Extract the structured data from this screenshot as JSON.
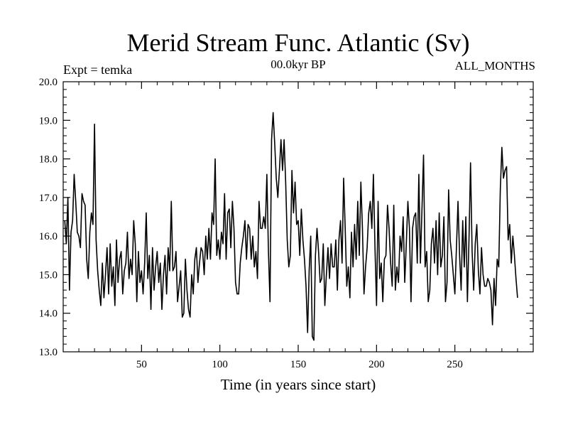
{
  "chart_data": {
    "type": "line",
    "title": "Merid Stream Func. Atlantic (Sv)",
    "subtitle_left": "Expt = temka",
    "subtitle_center": "00.0kyr BP",
    "subtitle_right": "ALL_MONTHS",
    "xlabel": "Time (in years since start)",
    "ylabel": "",
    "xlim": [
      0,
      300
    ],
    "ylim": [
      13.0,
      20.0
    ],
    "x_ticks": [
      50,
      100,
      150,
      200,
      250
    ],
    "x_tick_labels": [
      "50",
      "100",
      "150",
      "200",
      "250"
    ],
    "y_ticks": [
      13,
      14,
      15,
      16,
      17,
      18,
      19,
      20
    ],
    "y_tick_labels": [
      "13.0",
      "14.0",
      "15.0",
      "16.0",
      "17.0",
      "18.0",
      "19.0",
      "20.0"
    ],
    "x_minor_step": 10,
    "y_minor_step": 0.2,
    "line_color": "#000000",
    "series": [
      {
        "name": "Merid Stream Func. Atlantic",
        "x_start": 1,
        "x_step": 1,
        "values": [
          16.4,
          15.8,
          17.0,
          14.6,
          16.1,
          16.4,
          17.6,
          16.9,
          16.1,
          16.0,
          15.7,
          17.1,
          16.9,
          16.8,
          15.4,
          14.9,
          16.1,
          16.6,
          16.3,
          18.9,
          15.9,
          15.1,
          14.6,
          14.2,
          15.3,
          14.4,
          15.0,
          15.7,
          14.5,
          15.8,
          14.7,
          15.2,
          14.2,
          15.9,
          14.8,
          15.4,
          15.6,
          14.5,
          15.1,
          15.3,
          16.1,
          14.9,
          15.4,
          15.0,
          16.4,
          15.8,
          14.3,
          15.6,
          14.8,
          15.1,
          14.5,
          15.3,
          16.6,
          14.9,
          15.5,
          14.1,
          15.7,
          14.6,
          15.2,
          15.6,
          14.8,
          15.3,
          14.1,
          15.0,
          15.5,
          14.5,
          15.7,
          15.1,
          16.9,
          15.1,
          15.2,
          15.6,
          14.3,
          14.7,
          15.1,
          13.9,
          14.0,
          15.4,
          14.6,
          14.1,
          13.9,
          15.0,
          14.5,
          15.4,
          15.7,
          14.8,
          15.3,
          15.7,
          15.6,
          15.0,
          16.0,
          15.4,
          16.2,
          15.4,
          16.6,
          16.3,
          18.0,
          15.5,
          15.9,
          15.4,
          16.1,
          15.8,
          17.1,
          15.4,
          16.6,
          16.7,
          15.7,
          16.9,
          16.2,
          14.8,
          14.5,
          14.5,
          15.3,
          15.7,
          16.0,
          16.4,
          15.4,
          16.3,
          16.2,
          15.4,
          16.0,
          15.2,
          15.6,
          14.9,
          16.9,
          16.2,
          16.2,
          16.5,
          16.2,
          17.6,
          15.6,
          14.3,
          18.5,
          19.2,
          18.4,
          17.5,
          17.0,
          17.7,
          18.5,
          17.7,
          18.5,
          17.4,
          15.9,
          15.2,
          15.5,
          17.7,
          16.6,
          17.4,
          16.3,
          16.4,
          15.5,
          16.7,
          15.9,
          15.4,
          14.7,
          13.5,
          15.1,
          16.0,
          13.4,
          13.3,
          15.5,
          16.2,
          15.6,
          14.8,
          14.9,
          15.8,
          14.2,
          15.0,
          15.7,
          14.9,
          15.8,
          15.2,
          15.2,
          15.9,
          14.6,
          15.9,
          16.4,
          15.3,
          17.5,
          16.2,
          14.7,
          15.2,
          14.4,
          16.1,
          15.2,
          16.3,
          15.4,
          16.9,
          15.5,
          17.4,
          16.2,
          14.5,
          15.2,
          15.7,
          16.6,
          16.9,
          16.2,
          17.6,
          15.7,
          14.2,
          16.9,
          14.9,
          15.3,
          14.3,
          15.4,
          15.5,
          16.8,
          16.2,
          15.3,
          14.7,
          16.8,
          14.6,
          15.2,
          14.8,
          16.0,
          15.6,
          16.5,
          14.8,
          15.8,
          16.9,
          16.2,
          14.3,
          16.2,
          16.5,
          16.6,
          15.3,
          17.6,
          15.3,
          16.7,
          18.1,
          15.2,
          15.6,
          14.3,
          14.6,
          15.8,
          16.2,
          15.3,
          16.4,
          15.0,
          16.6,
          15.2,
          15.5,
          16.5,
          14.3,
          14.8,
          17.2,
          15.9,
          15.5,
          15.0,
          14.5,
          15.7,
          16.9,
          15.5,
          14.6,
          16.4,
          15.2,
          16.5,
          14.3,
          15.9,
          17.9,
          15.6,
          14.6,
          15.8,
          16.3,
          15.1,
          14.5,
          15.7,
          15.0,
          14.7,
          14.7,
          14.9,
          14.8,
          14.6,
          13.7,
          14.9,
          14.2,
          15.4,
          15.2,
          17.2,
          18.3,
          17.5,
          17.7,
          17.8,
          15.9,
          16.3,
          15.3,
          16.0,
          15.5,
          14.9,
          14.4
        ]
      }
    ]
  }
}
